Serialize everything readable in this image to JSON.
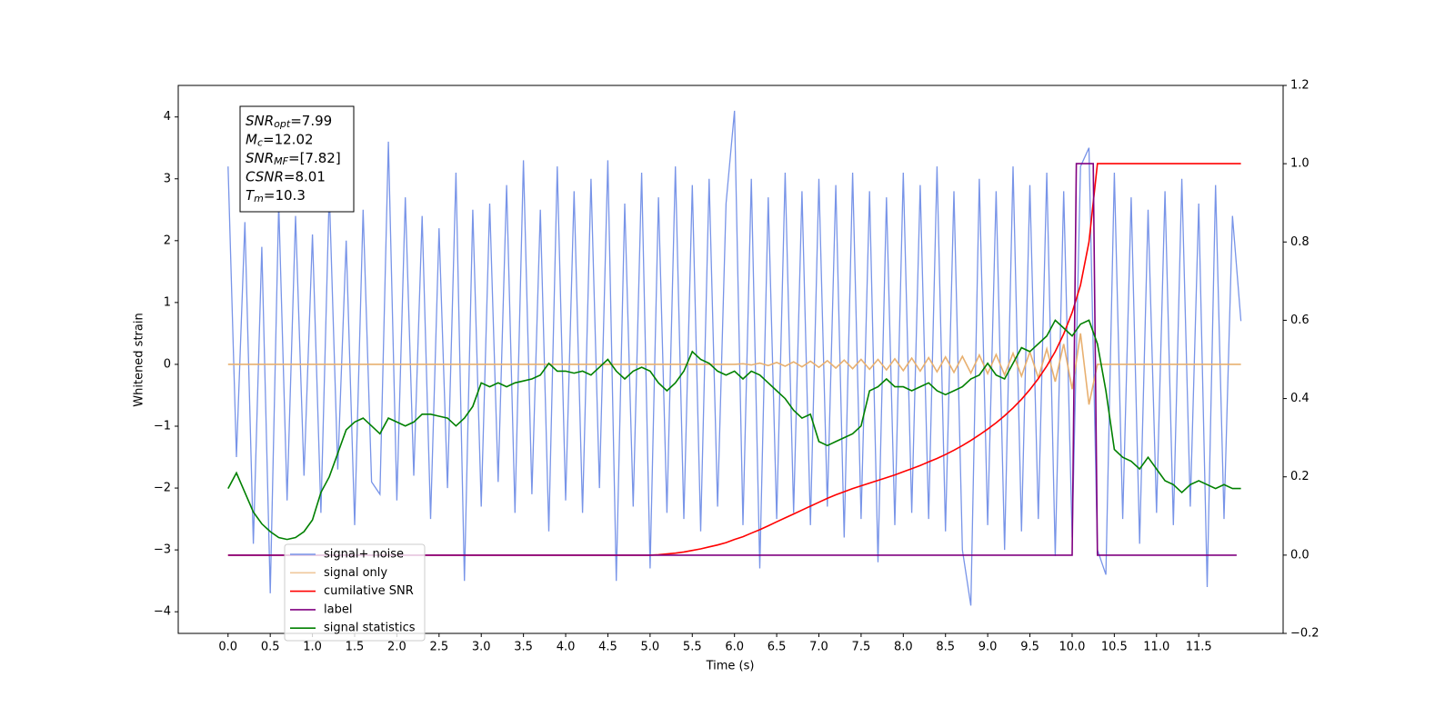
{
  "chart_data": {
    "type": "line",
    "xlabel": "Time (s)",
    "ylabel": "Whitened strain",
    "xlim": [
      -0.59,
      12.5
    ],
    "ylim": [
      -4.35,
      4.51
    ],
    "y2lim": [
      -0.2,
      1.2
    ],
    "xticks": [
      {
        "value": 0,
        "label": "0.0"
      },
      0.5,
      {
        "value": 1,
        "label": "1.0"
      },
      1.5,
      {
        "value": 2,
        "label": "2.0"
      },
      2.5,
      {
        "value": 3,
        "label": "3.0"
      },
      3.5,
      {
        "value": 4,
        "label": "4.0"
      },
      4.5,
      {
        "value": 5,
        "label": "5.0"
      },
      5.5,
      {
        "value": 6,
        "label": "6.0"
      },
      6.5,
      {
        "value": 7,
        "label": "7.0"
      },
      7.5,
      {
        "value": 8,
        "label": "8.0"
      },
      8.5,
      {
        "value": 9,
        "label": "9.0"
      },
      9.5,
      {
        "value": 10,
        "label": "10.0"
      },
      10.5,
      {
        "value": 11,
        "label": "11.0"
      },
      11.5
    ],
    "yticks": [
      {
        "value": -4,
        "label": "−4"
      },
      {
        "value": -3,
        "label": "−3"
      },
      {
        "value": -2,
        "label": "−2"
      },
      {
        "value": -1,
        "label": "−1"
      },
      0,
      1,
      2,
      3,
      4
    ],
    "y2ticks": [
      {
        "value": -0.2,
        "label": "−0.2"
      },
      {
        "value": 0,
        "label": "0.0"
      },
      0.2,
      0.4,
      0.6,
      0.8,
      {
        "value": 1,
        "label": "1.0"
      },
      1.2
    ],
    "legend": "lower left",
    "annotations": [
      {
        "symbol": "SNR",
        "subscript": "opt",
        "text": "=7.99"
      },
      {
        "symbol": "M",
        "subscript": "c",
        "text": "=12.02"
      },
      {
        "symbol": "SNR",
        "subscript": "MF",
        "text": "=[7.82]"
      },
      {
        "symbol": "CSNR",
        "text": "=8.01"
      },
      {
        "symbol": "T",
        "subscript": "m",
        "text": "=10.3"
      }
    ],
    "x": [
      0,
      0.1,
      0.2,
      0.3,
      0.4,
      0.5,
      0.6,
      0.7,
      0.8,
      0.9,
      1,
      1.1,
      1.2,
      1.3,
      1.4,
      1.5,
      1.6,
      1.7,
      1.8,
      1.9,
      2,
      2.1,
      2.2,
      2.3,
      2.4,
      2.5,
      2.6,
      2.7,
      2.8,
      2.9,
      3,
      3.1,
      3.2,
      3.3,
      3.4,
      3.5,
      3.6,
      3.7,
      3.8,
      3.9,
      4,
      4.1,
      4.2,
      4.3,
      4.4,
      4.5,
      4.6,
      4.7,
      4.8,
      4.9,
      5,
      5.1,
      5.2,
      5.3,
      5.4,
      5.5,
      5.6,
      5.7,
      5.8,
      5.9,
      6,
      6.1,
      6.2,
      6.3,
      6.4,
      6.5,
      6.6,
      6.7,
      6.8,
      6.9,
      7,
      7.1,
      7.2,
      7.3,
      7.4,
      7.5,
      7.6,
      7.7,
      7.8,
      7.9,
      8,
      8.1,
      8.2,
      8.3,
      8.4,
      8.5,
      8.6,
      8.7,
      8.8,
      8.9,
      9,
      9.1,
      9.2,
      9.3,
      9.4,
      9.5,
      9.6,
      9.7,
      9.8,
      9.9,
      10,
      10.1,
      10.2,
      10.3,
      10.4,
      10.5,
      10.6,
      10.7,
      10.8,
      10.9,
      11,
      11.1,
      11.2,
      11.3,
      11.4,
      11.5,
      11.6,
      11.7,
      11.8,
      11.9,
      12
    ],
    "series": [
      {
        "name": "signal+ noise",
        "color": "#7894e8",
        "values": [
          3.2,
          -1.5,
          2.3,
          -2.9,
          1.9,
          -3.7,
          2.6,
          -2.2,
          2.4,
          -1.8,
          2.1,
          -2.4,
          2.8,
          -1.7,
          2.0,
          -2.6,
          2.5,
          -1.9,
          -2.1,
          3.6,
          -2.2,
          2.7,
          -1.8,
          2.4,
          -2.5,
          2.2,
          -2.0,
          3.1,
          -3.5,
          2.5,
          -2.3,
          2.6,
          -1.9,
          2.9,
          -2.4,
          3.3,
          -2.1,
          2.5,
          -2.7,
          3.2,
          -2.2,
          2.8,
          -2.4,
          3.0,
          -2.0,
          3.3,
          -3.5,
          2.6,
          -2.3,
          3.1,
          -3.3,
          2.7,
          -2.4,
          3.2,
          -2.5,
          2.9,
          -2.7,
          3.0,
          -2.3,
          2.6,
          4.1,
          -2.6,
          3.0,
          -3.3,
          2.7,
          -2.5,
          3.1,
          -2.4,
          2.8,
          -2.6,
          3.0,
          -2.3,
          2.9,
          -2.8,
          3.1,
          -2.5,
          2.8,
          -3.2,
          2.7,
          -2.6,
          3.1,
          -2.4,
          2.9,
          -2.5,
          3.2,
          -2.7,
          2.8,
          -3.0,
          -3.9,
          3.0,
          -2.6,
          2.8,
          -3.0,
          3.2,
          -2.7,
          2.9,
          -2.5,
          3.1,
          -3.1,
          2.8,
          -2.8,
          3.2,
          3.5,
          -3.0,
          -3.4,
          3.1,
          -2.5,
          2.7,
          -2.9,
          2.5,
          -2.4,
          2.8,
          -2.6,
          3.0,
          -2.3,
          2.6,
          -3.6,
          2.9,
          -2.5,
          2.4,
          0.7
        ]
      },
      {
        "name": "signal only",
        "color": "#e8b070",
        "values": [
          0,
          0,
          0,
          0,
          0,
          0,
          0,
          0,
          0,
          0,
          0,
          0,
          0,
          0,
          0,
          0,
          0,
          0,
          0,
          0,
          0,
          0,
          0,
          0,
          0,
          0,
          0,
          0,
          0,
          0,
          0,
          0,
          0,
          0,
          0,
          0,
          0,
          0,
          0,
          0,
          0,
          0,
          0,
          0,
          0,
          0,
          0,
          0,
          0,
          0,
          0,
          0,
          0,
          0,
          0,
          0,
          0,
          0,
          0,
          0,
          0,
          0.01,
          -0.01,
          0.02,
          -0.02,
          0.03,
          -0.03,
          0.04,
          -0.04,
          0.05,
          -0.05,
          0.06,
          -0.06,
          0.07,
          -0.07,
          0.08,
          -0.08,
          0.08,
          -0.09,
          0.09,
          -0.1,
          0.1,
          -0.11,
          0.11,
          -0.12,
          0.12,
          -0.13,
          0.13,
          -0.14,
          0.15,
          -0.15,
          0.16,
          -0.17,
          0.18,
          -0.19,
          0.2,
          -0.22,
          0.25,
          -0.28,
          0.33,
          -0.4,
          0.5,
          -0.65,
          0,
          0,
          0,
          0,
          0,
          0,
          0,
          0,
          0,
          0,
          0,
          0,
          0,
          0,
          0,
          0,
          0,
          0
        ]
      },
      {
        "name": "cumilative SNR",
        "color": "#ff0000",
        "axis": "y2",
        "values": [
          0,
          0,
          0,
          0,
          0,
          0,
          0,
          0,
          0,
          0,
          0,
          0,
          0,
          0,
          0,
          0,
          0,
          0,
          0,
          0,
          0,
          0,
          0,
          0,
          0,
          0,
          0,
          0,
          0,
          0,
          0,
          0,
          0,
          0,
          0,
          0,
          0,
          0,
          0,
          0,
          0,
          0,
          0,
          0,
          0,
          0,
          0,
          0,
          0,
          0,
          0,
          0.001,
          0.003,
          0.005,
          0.008,
          0.012,
          0.016,
          0.021,
          0.026,
          0.032,
          0.04,
          0.047,
          0.056,
          0.065,
          0.075,
          0.085,
          0.095,
          0.105,
          0.115,
          0.125,
          0.135,
          0.145,
          0.154,
          0.162,
          0.17,
          0.177,
          0.184,
          0.191,
          0.198,
          0.205,
          0.213,
          0.221,
          0.229,
          0.238,
          0.247,
          0.257,
          0.268,
          0.28,
          0.293,
          0.307,
          0.322,
          0.338,
          0.356,
          0.376,
          0.398,
          0.423,
          0.451,
          0.483,
          0.52,
          0.565,
          0.62,
          0.69,
          0.8,
          1,
          1,
          1,
          1,
          1,
          1,
          1,
          1,
          1,
          1,
          1,
          1,
          1,
          1,
          1,
          1,
          1,
          1
        ]
      },
      {
        "name": "label",
        "color": "#800080",
        "axis": "y2",
        "x": [
          0,
          10.0,
          10.05,
          10.25,
          10.3,
          11.95
        ],
        "values": [
          0,
          0,
          1,
          1,
          0,
          0
        ]
      },
      {
        "name": "signal statistics",
        "color": "#008000",
        "axis": "y2",
        "values": [
          0.17,
          0.21,
          0.16,
          0.11,
          0.08,
          0.06,
          0.045,
          0.04,
          0.045,
          0.06,
          0.09,
          0.16,
          0.2,
          0.26,
          0.32,
          0.34,
          0.35,
          0.33,
          0.31,
          0.35,
          0.34,
          0.33,
          0.34,
          0.36,
          0.36,
          0.355,
          0.35,
          0.33,
          0.35,
          0.38,
          0.44,
          0.43,
          0.44,
          0.43,
          0.44,
          0.445,
          0.45,
          0.46,
          0.49,
          0.47,
          0.47,
          0.465,
          0.47,
          0.46,
          0.48,
          0.5,
          0.47,
          0.45,
          0.47,
          0.48,
          0.47,
          0.44,
          0.42,
          0.44,
          0.47,
          0.52,
          0.5,
          0.49,
          0.47,
          0.46,
          0.47,
          0.45,
          0.47,
          0.46,
          0.44,
          0.42,
          0.4,
          0.37,
          0.35,
          0.36,
          0.29,
          0.28,
          0.29,
          0.3,
          0.31,
          0.33,
          0.42,
          0.43,
          0.45,
          0.43,
          0.43,
          0.42,
          0.43,
          0.44,
          0.42,
          0.41,
          0.42,
          0.43,
          0.45,
          0.46,
          0.49,
          0.46,
          0.45,
          0.49,
          0.53,
          0.52,
          0.54,
          0.56,
          0.6,
          0.58,
          0.56,
          0.59,
          0.6,
          0.54,
          0.42,
          0.27,
          0.25,
          0.24,
          0.22,
          0.25,
          0.22,
          0.19,
          0.18,
          0.16,
          0.18,
          0.19,
          0.18,
          0.17,
          0.18,
          0.17,
          0.17
        ]
      }
    ]
  }
}
